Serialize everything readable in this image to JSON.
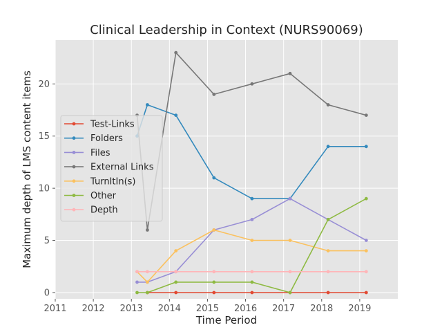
{
  "chart_data": {
    "type": "line",
    "title": "Clinical Leadership in Context (NURS90069)",
    "xlabel": "Time Period",
    "ylabel": "Maximum depth of LMS content items",
    "xlim": [
      2011,
      2020
    ],
    "ylim": [
      -0.6,
      24.2
    ],
    "x_ticks": [
      "2011",
      "2012",
      "2013",
      "2014",
      "2015",
      "2016",
      "2017",
      "2018",
      "2019"
    ],
    "y_ticks": [
      "0",
      "5",
      "10",
      "15",
      "20"
    ],
    "grid": true,
    "legend_position": "center-left",
    "x": [
      2013.15,
      2013.42,
      2014.17,
      2015.17,
      2016.17,
      2017.17,
      2018.17,
      2019.17
    ],
    "series": [
      {
        "name": "Test-Links",
        "color": "#E24A33",
        "values": [
          null,
          0,
          0,
          0,
          0,
          0,
          0,
          0
        ]
      },
      {
        "name": "Folders",
        "color": "#348ABD",
        "values": [
          15,
          18,
          17,
          11,
          9,
          9,
          14,
          14
        ]
      },
      {
        "name": "Files",
        "color": "#988ED5",
        "values": [
          1,
          1,
          2,
          6,
          7,
          9,
          7,
          5
        ]
      },
      {
        "name": "External Links",
        "color": "#777777",
        "values": [
          17,
          6,
          23,
          19,
          20,
          21,
          18,
          17
        ]
      },
      {
        "name": "TurnItIn(s)",
        "color": "#FBC15E",
        "values": [
          2,
          1,
          4,
          6,
          5,
          5,
          4,
          4
        ]
      },
      {
        "name": "Other",
        "color": "#8EBA42",
        "values": [
          0,
          0,
          1,
          1,
          1,
          0,
          7,
          9
        ]
      },
      {
        "name": "Depth",
        "color": "#FFB5B8",
        "values": [
          2,
          2,
          2,
          2,
          2,
          2,
          2,
          2
        ]
      }
    ]
  }
}
